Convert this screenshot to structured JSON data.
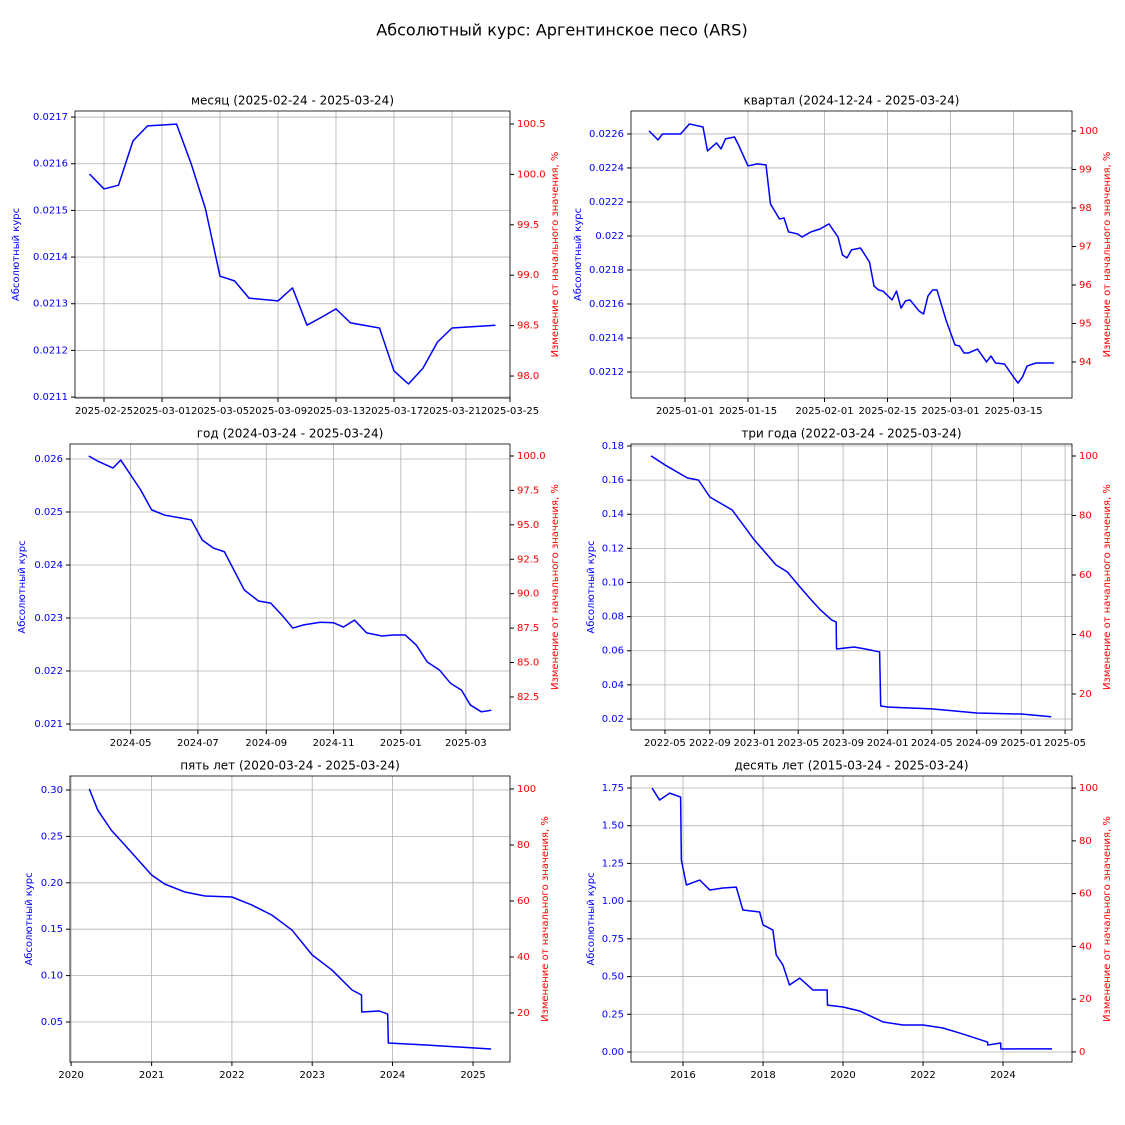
{
  "title": "Абсолютный курс: Аргентинское песо (ARS)",
  "chart_data": [
    {
      "type": "line",
      "title": "месяц (2025-02-24 - 2025-03-24)",
      "ylabel": "Абсолютный курс",
      "y2label": "Изменение от начального значения, %",
      "color": "#0000ff",
      "axis_color": "#0000ff",
      "y2_color": "#ff0000",
      "grid": true,
      "x": [
        "2025-02-24",
        "2025-02-25",
        "2025-02-26",
        "2025-02-27",
        "2025-02-28",
        "2025-03-02",
        "2025-03-03",
        "2025-03-04",
        "2025-03-05",
        "2025-03-06",
        "2025-03-07",
        "2025-03-09",
        "2025-03-10",
        "2025-03-11",
        "2025-03-12",
        "2025-03-13",
        "2025-03-14",
        "2025-03-16",
        "2025-03-17",
        "2025-03-18",
        "2025-03-19",
        "2025-03-20",
        "2025-03-21",
        "2025-03-24"
      ],
      "values": [
        0.021578,
        0.021546,
        0.021554,
        0.021649,
        0.021681,
        0.021685,
        0.021601,
        0.021503,
        0.021359,
        0.021349,
        0.021312,
        0.021306,
        0.021334,
        0.021254,
        0.021271,
        0.021289,
        0.021259,
        0.021248,
        0.021156,
        0.021128,
        0.021162,
        0.021218,
        0.021248,
        0.021254
      ],
      "xlim": [
        "2025-02-23",
        "2025-03-25"
      ],
      "xticks": [
        "2025-02-25",
        "2025-03-01",
        "2025-03-05",
        "2025-03-09",
        "2025-03-13",
        "2025-03-17",
        "2025-03-21",
        "2025-03-25"
      ],
      "ylim": [
        0.021098,
        0.021713
      ],
      "yticks": [
        0.0211,
        0.0212,
        0.0213,
        0.0214,
        0.0215,
        0.0216,
        0.0217
      ],
      "y2lim": [
        97.782,
        100.629
      ],
      "y2ticks": [
        {
          "value": 98,
          "label": "98.0"
        },
        98.5,
        {
          "value": 99,
          "label": "99.0"
        },
        99.5,
        {
          "value": 100,
          "label": "100.0"
        },
        100.5
      ]
    },
    {
      "type": "line",
      "title": "квартал (2024-12-24 - 2025-03-24)",
      "ylabel": "Абсолютный курс",
      "y2label": "Изменение от начального значения, %",
      "color": "#0000ff",
      "axis_color": "#0000ff",
      "y2_color": "#ff0000",
      "grid": true,
      "x": [
        "2024-12-24",
        "2024-12-26",
        "2024-12-27",
        "2024-12-31",
        "2025-01-02",
        "2025-01-05",
        "2025-01-06",
        "2025-01-08",
        "2025-01-09",
        "2025-01-10",
        "2025-01-12",
        "2025-01-13",
        "2025-01-15",
        "2025-01-17",
        "2025-01-19",
        "2025-01-20",
        "2025-01-22",
        "2025-01-23",
        "2025-01-24",
        "2025-01-26",
        "2025-01-27",
        "2025-01-29",
        "2025-01-31",
        "2025-02-02",
        "2025-02-04",
        "2025-02-05",
        "2025-02-06",
        "2025-02-07",
        "2025-02-09",
        "2025-02-11",
        "2025-02-12",
        "2025-02-13",
        "2025-02-14",
        "2025-02-16",
        "2025-02-17",
        "2025-02-18",
        "2025-02-19",
        "2025-02-20",
        "2025-02-22",
        "2025-02-23",
        "2025-02-24",
        "2025-02-25",
        "2025-02-26",
        "2025-02-28",
        "2025-03-02",
        "2025-03-03",
        "2025-03-04",
        "2025-03-05",
        "2025-03-07",
        "2025-03-09",
        "2025-03-10",
        "2025-03-11",
        "2025-03-13",
        "2025-03-15",
        "2025-03-16",
        "2025-03-17",
        "2025-03-18",
        "2025-03-20",
        "2025-03-23",
        "2025-03-24"
      ],
      "values": [
        0.022618,
        0.022565,
        0.0226,
        0.0226,
        0.022659,
        0.022641,
        0.0225,
        0.022547,
        0.022512,
        0.022571,
        0.022582,
        0.022529,
        0.022412,
        0.022424,
        0.022418,
        0.022188,
        0.0221,
        0.022106,
        0.022024,
        0.022012,
        0.021994,
        0.022024,
        0.022041,
        0.022071,
        0.021994,
        0.021888,
        0.021871,
        0.021918,
        0.021929,
        0.021847,
        0.021706,
        0.021682,
        0.021676,
        0.021624,
        0.021676,
        0.021576,
        0.021618,
        0.021624,
        0.021559,
        0.021541,
        0.021647,
        0.021682,
        0.021682,
        0.021506,
        0.021359,
        0.021353,
        0.021312,
        0.021312,
        0.021335,
        0.021259,
        0.021294,
        0.021253,
        0.021247,
        0.021171,
        0.021135,
        0.021171,
        0.021235,
        0.021253,
        0.021253,
        0.021253
      ],
      "xlim": [
        "2024-12-20",
        "2025-03-28"
      ],
      "xticks": [
        "2025-01-01",
        "2025-01-15",
        "2025-02-01",
        "2025-02-15",
        "2025-03-01",
        "2025-03-15"
      ],
      "ylim": [
        0.021047,
        0.022735
      ],
      "yticks": [
        0.0212,
        0.0214,
        0.0216,
        0.0218,
        0.022,
        0.0222,
        0.0224,
        0.0226
      ],
      "y2lim": [
        93.065,
        100.52
      ],
      "y2ticks": [
        94,
        95,
        96,
        97,
        98,
        99,
        100
      ]
    },
    {
      "type": "line",
      "title": "год (2024-03-24 - 2025-03-24)",
      "ylabel": "Абсолютный курс",
      "y2label": "Изменение от начального значения, %",
      "color": "#0000ff",
      "axis_color": "#0000ff",
      "y2_color": "#ff0000",
      "grid": true,
      "x": [
        "2024-03-24",
        "2024-04-01",
        "2024-04-15",
        "2024-04-22",
        "2024-05-01",
        "2024-05-10",
        "2024-05-20",
        "2024-06-01",
        "2024-06-15",
        "2024-06-25",
        "2024-07-05",
        "2024-07-15",
        "2024-07-25",
        "2024-08-05",
        "2024-08-12",
        "2024-08-25",
        "2024-09-05",
        "2024-09-15",
        "2024-09-25",
        "2024-10-05",
        "2024-10-20",
        "2024-11-01",
        "2024-11-10",
        "2024-11-20",
        "2024-12-01",
        "2024-12-15",
        "2024-12-25",
        "2025-01-05",
        "2025-01-15",
        "2025-01-25",
        "2025-02-05",
        "2025-02-15",
        "2025-02-25",
        "2025-03-05",
        "2025-03-15",
        "2025-03-24"
      ],
      "values": [
        0.026057,
        0.025962,
        0.02583,
        0.02598,
        0.0257,
        0.02542,
        0.02504,
        0.02494,
        0.02489,
        0.02485,
        0.02447,
        0.02432,
        0.02425,
        0.02381,
        0.02353,
        0.02332,
        0.02328,
        0.02306,
        0.02281,
        0.02287,
        0.02292,
        0.02291,
        0.02283,
        0.02296,
        0.02272,
        0.02266,
        0.02268,
        0.02268,
        0.02249,
        0.02217,
        0.02202,
        0.02177,
        0.02164,
        0.02136,
        0.02123,
        0.02126
      ],
      "xlim": [
        "2024-03-07",
        "2025-04-10"
      ],
      "xticks": [
        "2024-05",
        "2024-07",
        "2024-09",
        "2024-11",
        "2025-01",
        "2025-03"
      ],
      "ylim": [
        0.020887,
        0.026283
      ],
      "yticks": [
        0.021,
        0.022,
        0.023,
        0.024,
        0.025,
        0.026
      ],
      "y2lim": [
        80.1,
        100.87
      ],
      "y2ticks": [
        82.5,
        {
          "value": 85,
          "label": "85.0"
        },
        87.5,
        {
          "value": 90,
          "label": "90.0"
        },
        92.5,
        {
          "value": 95,
          "label": "95.0"
        },
        97.5,
        {
          "value": 100,
          "label": "100.0"
        }
      ]
    },
    {
      "type": "line",
      "title": "три года (2022-03-24 - 2025-03-24)",
      "ylabel": "Абсолютный курс",
      "y2label": "Изменение от начального значения, %",
      "color": "#0000ff",
      "axis_color": "#0000ff",
      "y2_color": "#ff0000",
      "grid": true,
      "x": [
        "2022-03-24",
        "2022-05-01",
        "2022-07-01",
        "2022-08-01",
        "2022-09-01",
        "2022-11-01",
        "2023-01-01",
        "2023-02-01",
        "2023-03-01",
        "2023-04-01",
        "2023-05-01",
        "2023-06-01",
        "2023-07-01",
        "2023-08-01",
        "2023-08-13",
        "2023-08-14",
        "2023-10-01",
        "2023-11-01",
        "2023-12-10",
        "2023-12-13",
        "2024-01-01",
        "2024-05-01",
        "2024-09-01",
        "2025-01-01",
        "2025-03-24"
      ],
      "values": [
        0.1742,
        0.1689,
        0.1613,
        0.16,
        0.1501,
        0.1425,
        0.1249,
        0.1173,
        0.1103,
        0.1062,
        0.0986,
        0.0909,
        0.0839,
        0.078,
        0.0769,
        0.061,
        0.0622,
        0.061,
        0.0593,
        0.0276,
        0.027,
        0.0259,
        0.0235,
        0.0229,
        0.0213
      ],
      "xlim": [
        "2022-01-28",
        "2025-05-20"
      ],
      "xticks": [
        "2022-05",
        "2022-09",
        "2023-01",
        "2023-05",
        "2023-09",
        "2024-01",
        "2024-05",
        "2024-09",
        "2025-01",
        "2025-05"
      ],
      "ylim": [
        0.01355,
        0.18117
      ],
      "yticks": [
        0.02,
        0.04,
        0.06,
        0.08,
        {
          "value": 0.1,
          "label": "0.10"
        },
        0.12,
        0.14,
        0.16,
        0.18
      ],
      "y2lim": [
        7.9,
        104.03
      ],
      "y2ticks": [
        20,
        40,
        60,
        80,
        100
      ]
    },
    {
      "type": "line",
      "title": "пять лет (2020-03-24 - 2025-03-24)",
      "ylabel": "Абсолютный курс",
      "y2label": "Изменение от начального значения, %",
      "color": "#0000ff",
      "axis_color": "#0000ff",
      "y2_color": "#ff0000",
      "grid": true,
      "x": [
        "2020-03-24",
        "2020-05-01",
        "2020-07-01",
        "2020-09-01",
        "2020-11-01",
        "2021-01-01",
        "2021-03-01",
        "2021-06-01",
        "2021-09-01",
        "2022-01-01",
        "2022-04-01",
        "2022-07-01",
        "2022-10-01",
        "2023-01-01",
        "2023-04-01",
        "2023-07-01",
        "2023-08-13",
        "2023-08-14",
        "2023-11-01",
        "2023-12-10",
        "2023-12-13",
        "2024-06-01",
        "2025-03-24"
      ],
      "values": [
        0.3011,
        0.2784,
        0.2569,
        0.2407,
        0.2246,
        0.2084,
        0.1987,
        0.1901,
        0.1858,
        0.1847,
        0.1761,
        0.1653,
        0.1491,
        0.1222,
        0.106,
        0.0845,
        0.0791,
        0.0608,
        0.0619,
        0.0586,
        0.0274,
        0.0252,
        0.0209
      ],
      "xlim": [
        "2019-12-27",
        "2025-06-18"
      ],
      "xticks": [
        "2020",
        "2021",
        "2022",
        "2023",
        "2024",
        "2025"
      ],
      "ylim": [
        0.0069,
        0.31509
      ],
      "yticks": [
        0.05,
        {
          "value": 0.1,
          "label": "0.10"
        },
        0.15,
        {
          "value": 0.2,
          "label": "0.20"
        },
        0.25,
        {
          "value": 0.3,
          "label": "0.30"
        }
      ],
      "y2lim": [
        2.5,
        104.64
      ],
      "y2ticks": [
        20,
        40,
        60,
        80,
        100
      ]
    },
    {
      "type": "line",
      "title": "десять лет (2015-03-24 - 2025-03-24)",
      "ylabel": "Абсолютный курс",
      "y2label": "Изменение от начального значения, %",
      "color": "#0000ff",
      "axis_color": "#0000ff",
      "y2_color": "#ff0000",
      "grid": true,
      "x": [
        "2015-03-24",
        "2015-06-01",
        "2015-09-01",
        "2015-12-10",
        "2015-12-17",
        "2016-02-01",
        "2016-06-01",
        "2016-09-01",
        "2017-01-01",
        "2017-05-01",
        "2017-07-01",
        "2017-12-01",
        "2018-01-01",
        "2018-04-01",
        "2018-05-01",
        "2018-07-01",
        "2018-08-30",
        "2018-12-01",
        "2019-04-01",
        "2019-08-09",
        "2019-08-12",
        "2020-01-01",
        "2020-06-01",
        "2021-01-01",
        "2021-07-01",
        "2022-01-01",
        "2022-07-01",
        "2023-01-01",
        "2023-08-13",
        "2023-08-14",
        "2023-12-10",
        "2023-12-13",
        "2025-03-24"
      ],
      "values": [
        1.75,
        1.67,
        1.716,
        1.69,
        1.272,
        1.107,
        1.14,
        1.074,
        1.087,
        1.093,
        0.941,
        0.928,
        0.842,
        0.808,
        0.643,
        0.577,
        0.444,
        0.49,
        0.411,
        0.411,
        0.311,
        0.298,
        0.272,
        0.199,
        0.179,
        0.179,
        0.159,
        0.119,
        0.066,
        0.046,
        0.06,
        0.02,
        0.021
      ],
      "xlim": [
        "2014-09-13",
        "2025-09-22"
      ],
      "xticks": [
        "2016",
        "2018",
        "2020",
        "2022",
        "2024"
      ],
      "ylim": [
        -0.0663,
        1.8295
      ],
      "yticks": [
        {
          "value": 0,
          "label": "0.00"
        },
        0.25,
        {
          "value": 0.5,
          "label": "0.50"
        },
        0.75,
        {
          "value": 1,
          "label": "1.00"
        },
        1.25,
        {
          "value": 1.5,
          "label": "1.50"
        },
        1.75
      ],
      "y2lim": [
        -3.82,
        104.58
      ],
      "y2ticks": [
        0,
        20,
        40,
        60,
        80,
        100
      ]
    }
  ]
}
